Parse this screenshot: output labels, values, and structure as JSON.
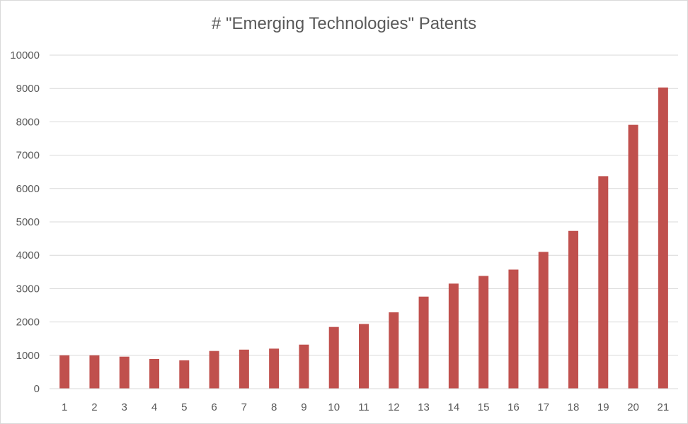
{
  "chart_data": {
    "type": "bar",
    "title": "# \"Emerging Technologies\" Patents",
    "xlabel": "",
    "ylabel": "",
    "categories": [
      "1",
      "2",
      "3",
      "4",
      "5",
      "6",
      "7",
      "8",
      "9",
      "10",
      "11",
      "12",
      "13",
      "14",
      "15",
      "16",
      "17",
      "18",
      "19",
      "20",
      "21"
    ],
    "values": [
      1000,
      1000,
      960,
      890,
      850,
      1130,
      1170,
      1200,
      1320,
      1850,
      1940,
      2290,
      2760,
      3150,
      3380,
      3570,
      4100,
      4730,
      6370,
      7910,
      9030
    ],
    "ylim": [
      0,
      10000
    ],
    "yticks": [
      0,
      1000,
      2000,
      3000,
      4000,
      5000,
      6000,
      7000,
      8000,
      9000,
      10000
    ],
    "grid": true,
    "legend": "none",
    "bar_color": "#c0504d",
    "grid_color": "#d9d9d9"
  }
}
